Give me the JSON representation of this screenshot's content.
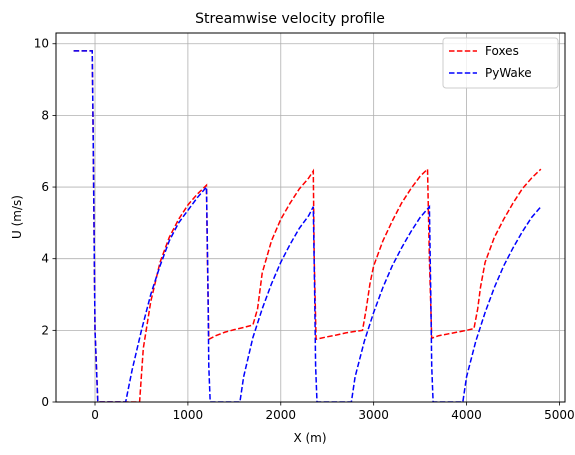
{
  "chart_data": {
    "type": "line",
    "title": "Streamwise velocity profile",
    "xlabel": "X (m)",
    "ylabel": "U (m/s)",
    "xlim": [
      -420,
      5060
    ],
    "ylim": [
      0,
      10.3
    ],
    "xticks": [
      0,
      1000,
      2000,
      3000,
      4000,
      5000
    ],
    "yticks": [
      0,
      2,
      4,
      6,
      8,
      10
    ],
    "grid": true,
    "legend": "top-right",
    "series": [
      {
        "name": "Foxes",
        "color": "#ff0000",
        "x": [
          -230,
          -30,
          -20,
          0,
          30,
          480,
          520,
          600,
          700,
          800,
          900,
          1000,
          1100,
          1200,
          1210,
          1225,
          1300,
          1400,
          1500,
          1600,
          1700,
          1750,
          1800,
          1900,
          2000,
          2100,
          2200,
          2300,
          2350,
          2360,
          2380,
          2500,
          2600,
          2700,
          2800,
          2880,
          2920,
          2960,
          3000,
          3100,
          3200,
          3300,
          3400,
          3500,
          3580,
          3600,
          3625,
          3700,
          3800,
          3900,
          4000,
          4080,
          4120,
          4150,
          4200,
          4300,
          4400,
          4500,
          4600,
          4700,
          4800
        ],
        "y": [
          9.8,
          9.8,
          7.5,
          2.0,
          0.0,
          0.0,
          1.5,
          2.8,
          3.9,
          4.6,
          5.1,
          5.5,
          5.8,
          6.05,
          4.0,
          1.75,
          1.85,
          1.95,
          2.02,
          2.08,
          2.15,
          2.6,
          3.6,
          4.5,
          5.1,
          5.55,
          5.95,
          6.25,
          6.45,
          4.0,
          1.75,
          1.82,
          1.87,
          1.93,
          1.97,
          2.0,
          2.6,
          3.3,
          3.8,
          4.5,
          5.05,
          5.55,
          5.95,
          6.3,
          6.5,
          4.0,
          1.78,
          1.85,
          1.9,
          1.95,
          2.0,
          2.05,
          2.6,
          3.2,
          3.9,
          4.6,
          5.1,
          5.55,
          5.95,
          6.25,
          6.5
        ]
      },
      {
        "name": "PyWake",
        "color": "#0000ff",
        "x": [
          -230,
          -30,
          -20,
          0,
          30,
          330,
          400,
          500,
          600,
          700,
          800,
          900,
          1000,
          1100,
          1200,
          1215,
          1225,
          1240,
          1560,
          1600,
          1700,
          1800,
          1900,
          2000,
          2100,
          2200,
          2300,
          2350,
          2365,
          2375,
          2390,
          2760,
          2800,
          2900,
          3000,
          3100,
          3200,
          3300,
          3400,
          3500,
          3600,
          3615,
          3625,
          3640,
          3960,
          4000,
          4100,
          4200,
          4300,
          4400,
          4500,
          4600,
          4700,
          4800
        ],
        "y": [
          9.8,
          9.8,
          7.5,
          2.0,
          0.0,
          0.0,
          0.9,
          2.0,
          3.0,
          3.8,
          4.5,
          5.0,
          5.35,
          5.7,
          6.0,
          3.5,
          1.0,
          0.0,
          0.0,
          0.7,
          1.8,
          2.6,
          3.3,
          3.9,
          4.4,
          4.85,
          5.2,
          5.45,
          3.0,
          1.0,
          0.0,
          0.0,
          0.7,
          1.7,
          2.5,
          3.2,
          3.8,
          4.3,
          4.75,
          5.15,
          5.45,
          3.0,
          1.0,
          0.0,
          0.0,
          0.7,
          1.7,
          2.5,
          3.2,
          3.8,
          4.3,
          4.75,
          5.15,
          5.45
        ]
      }
    ]
  }
}
